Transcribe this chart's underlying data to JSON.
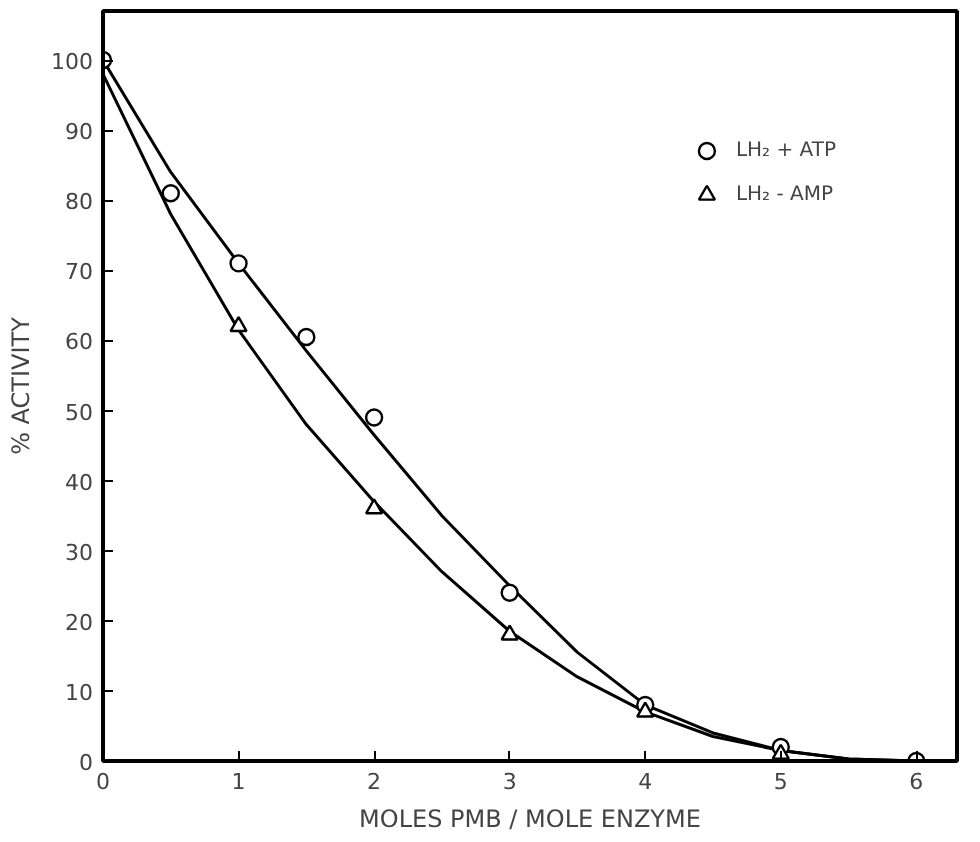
{
  "chart_data": {
    "type": "scatter",
    "xlabel": "MOLES PMB / MOLE ENZYME",
    "ylabel": "% ACTIVITY",
    "xlim": [
      0,
      6.3
    ],
    "ylim": [
      0,
      107
    ],
    "xticks": [
      0,
      1,
      2,
      3,
      4,
      5,
      6
    ],
    "yticks": [
      0,
      10,
      20,
      30,
      40,
      50,
      60,
      70,
      80,
      90,
      100
    ],
    "grid": false,
    "legend": "top right",
    "series": [
      {
        "name": "LH₂ + ATP",
        "marker": "circle",
        "color": "#000000",
        "x": [
          0,
          0.5,
          1,
          1.5,
          2,
          3,
          4,
          5,
          6
        ],
        "values": [
          100,
          81,
          71,
          60.5,
          49,
          24,
          8,
          2,
          0
        ]
      },
      {
        "name": "LH₂ - AMP",
        "marker": "triangle",
        "color": "#000000",
        "x": [
          1,
          2,
          3,
          4,
          5
        ],
        "values": [
          62,
          36,
          18,
          7,
          1
        ]
      },
      {
        "type": "line",
        "marker": "none",
        "color": "#000000",
        "x": [
          0,
          0.5,
          1,
          1.5,
          2,
          2.5,
          3,
          3.5,
          4,
          4.5,
          5,
          5.5,
          6
        ],
        "values": [
          100,
          84,
          71,
          58.5,
          46.5,
          35,
          25,
          15.5,
          8,
          4,
          1.5,
          0.3,
          0
        ]
      },
      {
        "type": "line",
        "marker": "none",
        "color": "#000000",
        "x": [
          0,
          0.5,
          1,
          1.5,
          2,
          2.5,
          3,
          3.5,
          4,
          4.5,
          5,
          5.5,
          6
        ],
        "values": [
          98,
          78,
          61.5,
          48,
          37,
          27,
          18.5,
          12,
          7,
          3.5,
          1.5,
          0.3,
          0
        ]
      }
    ]
  }
}
